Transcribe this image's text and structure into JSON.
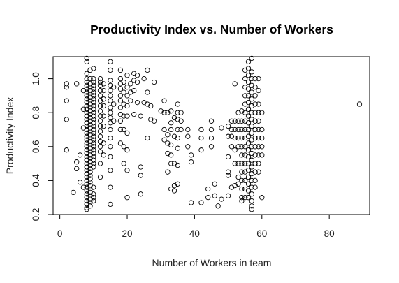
{
  "chart_data": {
    "type": "scatter",
    "title": "Productivity Index vs. Number of Workers",
    "xlabel": "Number of Workers in team",
    "ylabel": "Productivity Index",
    "xlim": [
      -2,
      92
    ],
    "ylim": [
      0.2,
      1.13
    ],
    "xticks": [
      0,
      20,
      40,
      60,
      80
    ],
    "yticks": [
      0.2,
      0.4,
      0.6,
      0.8,
      1.0
    ],
    "ytick_labels": [
      "0.2",
      "0.4",
      "0.6",
      "0.8",
      "1.0"
    ],
    "grid": false,
    "legend": "none",
    "marker": "open-circle",
    "colors": {
      "marker": "#000000",
      "axis": "#000000"
    },
    "points": [
      [
        2,
        0.97
      ],
      [
        2,
        0.95
      ],
      [
        2,
        0.87
      ],
      [
        2,
        0.76
      ],
      [
        2,
        0.58
      ],
      [
        4,
        0.33
      ],
      [
        5,
        0.51
      ],
      [
        5,
        0.47
      ],
      [
        5,
        0.97
      ],
      [
        6,
        0.55
      ],
      [
        6,
        0.39
      ],
      [
        7,
        0.82
      ],
      [
        7,
        0.93
      ],
      [
        7,
        0.71
      ],
      [
        7,
        0.36
      ],
      [
        8,
        1.12
      ],
      [
        8,
        1.1
      ],
      [
        8,
        1.03
      ],
      [
        8,
        1.0
      ],
      [
        8,
        0.98
      ],
      [
        8,
        0.96
      ],
      [
        8,
        0.94
      ],
      [
        8,
        0.92
      ],
      [
        8,
        0.9
      ],
      [
        8,
        0.88
      ],
      [
        8,
        0.86
      ],
      [
        8,
        0.84
      ],
      [
        8,
        0.82
      ],
      [
        8,
        0.8
      ],
      [
        8,
        0.78
      ],
      [
        8,
        0.76
      ],
      [
        8,
        0.74
      ],
      [
        8,
        0.72
      ],
      [
        8,
        0.7
      ],
      [
        8,
        0.68
      ],
      [
        8,
        0.66
      ],
      [
        8,
        0.64
      ],
      [
        8,
        0.62
      ],
      [
        8,
        0.6
      ],
      [
        8,
        0.58
      ],
      [
        8,
        0.56
      ],
      [
        8,
        0.54
      ],
      [
        8,
        0.52
      ],
      [
        8,
        0.5
      ],
      [
        8,
        0.48
      ],
      [
        8,
        0.46
      ],
      [
        8,
        0.44
      ],
      [
        8,
        0.42
      ],
      [
        8,
        0.4
      ],
      [
        8,
        0.38
      ],
      [
        8,
        0.36
      ],
      [
        8,
        0.34
      ],
      [
        8,
        0.32
      ],
      [
        8,
        0.3
      ],
      [
        8,
        0.28
      ],
      [
        8,
        0.26
      ],
      [
        8,
        0.24
      ],
      [
        8,
        0.23
      ],
      [
        9,
        1.05
      ],
      [
        9,
        1.0
      ],
      [
        9,
        0.97
      ],
      [
        9,
        0.95
      ],
      [
        9,
        0.93
      ],
      [
        9,
        0.91
      ],
      [
        9,
        0.89
      ],
      [
        9,
        0.87
      ],
      [
        9,
        0.85
      ],
      [
        9,
        0.83
      ],
      [
        9,
        0.81
      ],
      [
        9,
        0.79
      ],
      [
        9,
        0.77
      ],
      [
        9,
        0.75
      ],
      [
        9,
        0.73
      ],
      [
        9,
        0.71
      ],
      [
        9,
        0.69
      ],
      [
        9,
        0.67
      ],
      [
        9,
        0.65
      ],
      [
        9,
        0.63
      ],
      [
        9,
        0.61
      ],
      [
        9,
        0.59
      ],
      [
        9,
        0.57
      ],
      [
        9,
        0.55
      ],
      [
        9,
        0.53
      ],
      [
        9,
        0.51
      ],
      [
        9,
        0.49
      ],
      [
        9,
        0.47
      ],
      [
        9,
        0.45
      ],
      [
        9,
        0.43
      ],
      [
        9,
        0.41
      ],
      [
        9,
        0.39
      ],
      [
        9,
        0.37
      ],
      [
        9,
        0.35
      ],
      [
        9,
        0.33
      ],
      [
        9,
        0.31
      ],
      [
        9,
        0.29
      ],
      [
        9,
        0.27
      ],
      [
        9,
        0.25
      ],
      [
        10,
        1.06
      ],
      [
        10,
        1.0
      ],
      [
        10,
        0.98
      ],
      [
        10,
        0.96
      ],
      [
        10,
        0.94
      ],
      [
        10,
        0.92
      ],
      [
        10,
        0.9
      ],
      [
        10,
        0.88
      ],
      [
        10,
        0.86
      ],
      [
        10,
        0.84
      ],
      [
        10,
        0.82
      ],
      [
        10,
        0.8
      ],
      [
        10,
        0.78
      ],
      [
        10,
        0.76
      ],
      [
        10,
        0.74
      ],
      [
        10,
        0.72
      ],
      [
        10,
        0.7
      ],
      [
        10,
        0.68
      ],
      [
        10,
        0.66
      ],
      [
        10,
        0.64
      ],
      [
        10,
        0.62
      ],
      [
        10,
        0.6
      ],
      [
        10,
        0.58
      ],
      [
        10,
        0.56
      ],
      [
        10,
        0.54
      ],
      [
        10,
        0.52
      ],
      [
        10,
        0.5
      ],
      [
        10,
        0.48
      ],
      [
        10,
        0.36
      ],
      [
        10,
        0.32
      ],
      [
        10,
        0.3
      ],
      [
        10,
        0.28
      ],
      [
        12,
        1.0
      ],
      [
        12,
        0.98
      ],
      [
        12,
        0.96
      ],
      [
        12,
        0.93
      ],
      [
        12,
        0.9
      ],
      [
        12,
        0.87
      ],
      [
        12,
        0.84
      ],
      [
        12,
        0.81
      ],
      [
        12,
        0.78
      ],
      [
        12,
        0.75
      ],
      [
        12,
        0.72
      ],
      [
        12,
        0.69
      ],
      [
        12,
        0.66
      ],
      [
        12,
        0.63
      ],
      [
        12,
        0.6
      ],
      [
        12,
        0.57
      ],
      [
        12,
        0.5
      ],
      [
        12,
        0.42
      ],
      [
        13,
        0.97
      ],
      [
        13,
        0.93
      ],
      [
        13,
        0.88
      ],
      [
        13,
        0.84
      ],
      [
        13,
        0.78
      ],
      [
        13,
        0.72
      ],
      [
        13,
        0.62
      ],
      [
        13,
        0.55
      ],
      [
        15,
        1.1
      ],
      [
        15,
        1.05
      ],
      [
        15,
        0.99
      ],
      [
        15,
        0.96
      ],
      [
        15,
        0.93
      ],
      [
        15,
        0.9
      ],
      [
        15,
        0.87
      ],
      [
        15,
        0.83
      ],
      [
        15,
        0.8
      ],
      [
        15,
        0.77
      ],
      [
        15,
        0.74
      ],
      [
        15,
        0.7
      ],
      [
        15,
        0.65
      ],
      [
        15,
        0.6
      ],
      [
        15,
        0.54
      ],
      [
        15,
        0.46
      ],
      [
        15,
        0.36
      ],
      [
        15,
        0.26
      ],
      [
        16,
        0.95
      ],
      [
        16,
        0.85
      ],
      [
        16,
        0.75
      ],
      [
        18,
        1.05
      ],
      [
        18,
        1.0
      ],
      [
        18,
        0.97
      ],
      [
        18,
        0.94
      ],
      [
        18,
        0.9
      ],
      [
        18,
        0.87
      ],
      [
        18,
        0.83
      ],
      [
        18,
        0.79
      ],
      [
        18,
        0.75
      ],
      [
        18,
        0.7
      ],
      [
        18,
        0.62
      ],
      [
        19,
        0.98
      ],
      [
        19,
        0.92
      ],
      [
        19,
        0.85
      ],
      [
        19,
        0.78
      ],
      [
        19,
        0.7
      ],
      [
        19,
        0.6
      ],
      [
        19,
        0.5
      ],
      [
        20,
        1.02
      ],
      [
        20,
        0.95
      ],
      [
        20,
        0.9
      ],
      [
        20,
        0.84
      ],
      [
        20,
        0.78
      ],
      [
        20,
        0.68
      ],
      [
        20,
        0.58
      ],
      [
        20,
        0.46
      ],
      [
        20,
        0.3
      ],
      [
        21,
        0.97
      ],
      [
        21,
        0.92
      ],
      [
        21,
        0.87
      ],
      [
        22,
        1.03
      ],
      [
        22,
        0.99
      ],
      [
        22,
        0.93
      ],
      [
        22,
        0.79
      ],
      [
        23,
        1.02
      ],
      [
        23,
        0.98
      ],
      [
        23,
        0.86
      ],
      [
        24,
        0.78
      ],
      [
        24,
        0.48
      ],
      [
        24,
        0.43
      ],
      [
        24,
        0.32
      ],
      [
        25,
        1.0
      ],
      [
        25,
        0.86
      ],
      [
        26,
        0.92
      ],
      [
        26,
        0.85
      ],
      [
        26,
        0.65
      ],
      [
        26,
        1.05
      ],
      [
        27,
        0.84
      ],
      [
        27,
        0.76
      ],
      [
        28,
        0.75
      ],
      [
        28,
        0.98
      ],
      [
        30,
        0.81
      ],
      [
        31,
        0.8
      ],
      [
        31,
        0.87
      ],
      [
        31,
        0.7
      ],
      [
        31,
        0.64
      ],
      [
        32,
        0.8
      ],
      [
        32,
        0.67
      ],
      [
        32,
        0.62
      ],
      [
        32,
        0.56
      ],
      [
        32,
        0.45
      ],
      [
        33,
        0.81
      ],
      [
        33,
        0.74
      ],
      [
        33,
        0.7
      ],
      [
        33,
        0.61
      ],
      [
        33,
        0.55
      ],
      [
        33,
        0.5
      ],
      [
        33,
        0.35
      ],
      [
        34,
        0.77
      ],
      [
        34,
        0.66
      ],
      [
        34,
        0.5
      ],
      [
        34,
        0.37
      ],
      [
        34,
        0.34
      ],
      [
        35,
        0.85
      ],
      [
        35,
        0.8
      ],
      [
        35,
        0.76
      ],
      [
        35,
        0.7
      ],
      [
        35,
        0.65
      ],
      [
        35,
        0.59
      ],
      [
        35,
        0.49
      ],
      [
        35,
        0.38
      ],
      [
        36,
        0.8
      ],
      [
        36,
        0.75
      ],
      [
        36,
        0.7
      ],
      [
        38,
        0.7
      ],
      [
        38,
        0.66
      ],
      [
        38,
        0.6
      ],
      [
        39,
        0.55
      ],
      [
        39,
        0.51
      ],
      [
        39,
        0.27
      ],
      [
        42,
        0.7
      ],
      [
        42,
        0.65
      ],
      [
        42,
        0.58
      ],
      [
        42,
        0.27
      ],
      [
        44,
        0.35
      ],
      [
        44,
        0.3
      ],
      [
        45,
        0.75
      ],
      [
        45,
        0.7
      ],
      [
        45,
        0.65
      ],
      [
        45,
        0.6
      ],
      [
        46,
        0.38
      ],
      [
        46,
        0.31
      ],
      [
        47,
        0.25
      ],
      [
        48,
        0.29
      ],
      [
        48,
        0.71
      ],
      [
        50,
        0.72
      ],
      [
        50,
        0.66
      ],
      [
        50,
        0.54
      ],
      [
        50,
        0.45
      ],
      [
        50,
        0.43
      ],
      [
        50,
        0.31
      ],
      [
        51,
        0.75
      ],
      [
        51,
        0.7
      ],
      [
        51,
        0.66
      ],
      [
        51,
        0.6
      ],
      [
        51,
        0.36
      ],
      [
        52,
        0.97
      ],
      [
        52,
        0.75
      ],
      [
        52,
        0.7
      ],
      [
        52,
        0.65
      ],
      [
        52,
        0.58
      ],
      [
        52,
        0.5
      ],
      [
        52,
        0.37
      ],
      [
        53,
        0.8
      ],
      [
        53,
        0.75
      ],
      [
        53,
        0.7
      ],
      [
        53,
        0.65
      ],
      [
        53,
        0.6
      ],
      [
        53,
        0.5
      ],
      [
        53,
        0.42
      ],
      [
        53,
        0.38
      ],
      [
        54,
        0.81
      ],
      [
        54,
        0.75
      ],
      [
        54,
        0.7
      ],
      [
        54,
        0.65
      ],
      [
        54,
        0.6
      ],
      [
        54,
        0.55
      ],
      [
        54,
        0.5
      ],
      [
        54,
        0.45
      ],
      [
        54,
        0.4
      ],
      [
        54,
        0.35
      ],
      [
        54,
        0.3
      ],
      [
        54,
        0.28
      ],
      [
        55,
        1.05
      ],
      [
        55,
        1.0
      ],
      [
        55,
        0.95
      ],
      [
        55,
        0.9
      ],
      [
        55,
        0.85
      ],
      [
        55,
        0.8
      ],
      [
        55,
        0.75
      ],
      [
        55,
        0.7
      ],
      [
        55,
        0.65
      ],
      [
        55,
        0.6
      ],
      [
        55,
        0.55
      ],
      [
        55,
        0.5
      ],
      [
        55,
        0.45
      ],
      [
        55,
        0.4
      ],
      [
        55,
        0.35
      ],
      [
        55,
        0.3
      ],
      [
        56,
        1.1
      ],
      [
        56,
        1.06
      ],
      [
        56,
        1.02
      ],
      [
        56,
        0.98
      ],
      [
        56,
        0.94
      ],
      [
        56,
        0.9
      ],
      [
        56,
        0.86
      ],
      [
        56,
        0.82
      ],
      [
        56,
        0.78
      ],
      [
        56,
        0.74
      ],
      [
        56,
        0.7
      ],
      [
        56,
        0.66
      ],
      [
        56,
        0.62
      ],
      [
        56,
        0.58
      ],
      [
        56,
        0.54
      ],
      [
        56,
        0.5
      ],
      [
        56,
        0.46
      ],
      [
        56,
        0.42
      ],
      [
        56,
        0.38
      ],
      [
        56,
        0.34
      ],
      [
        56,
        0.3
      ],
      [
        57,
        1.12
      ],
      [
        57,
        1.04
      ],
      [
        57,
        1.0
      ],
      [
        57,
        0.96
      ],
      [
        57,
        0.92
      ],
      [
        57,
        0.88
      ],
      [
        57,
        0.84
      ],
      [
        57,
        0.8
      ],
      [
        57,
        0.76
      ],
      [
        57,
        0.72
      ],
      [
        57,
        0.68
      ],
      [
        57,
        0.64
      ],
      [
        57,
        0.6
      ],
      [
        57,
        0.56
      ],
      [
        57,
        0.52
      ],
      [
        57,
        0.48
      ],
      [
        57,
        0.44
      ],
      [
        57,
        0.4
      ],
      [
        57,
        0.36
      ],
      [
        57,
        0.32
      ],
      [
        57,
        0.28
      ],
      [
        57,
        0.25
      ],
      [
        57,
        0.23
      ],
      [
        58,
        1.0
      ],
      [
        58,
        0.95
      ],
      [
        58,
        0.9
      ],
      [
        58,
        0.85
      ],
      [
        58,
        0.8
      ],
      [
        58,
        0.75
      ],
      [
        58,
        0.7
      ],
      [
        58,
        0.65
      ],
      [
        58,
        0.6
      ],
      [
        58,
        0.55
      ],
      [
        58,
        0.5
      ],
      [
        58,
        0.45
      ],
      [
        58,
        0.4
      ],
      [
        58,
        0.36
      ],
      [
        59,
        1.0
      ],
      [
        59,
        0.93
      ],
      [
        59,
        0.85
      ],
      [
        59,
        0.8
      ],
      [
        59,
        0.75
      ],
      [
        59,
        0.7
      ],
      [
        59,
        0.65
      ],
      [
        59,
        0.6
      ],
      [
        59,
        0.55
      ],
      [
        59,
        0.5
      ],
      [
        59,
        0.45
      ],
      [
        60,
        0.8
      ],
      [
        60,
        0.7
      ],
      [
        60,
        0.65
      ],
      [
        60,
        0.6
      ],
      [
        60,
        0.55
      ],
      [
        60,
        0.3
      ],
      [
        89,
        0.85
      ]
    ]
  }
}
